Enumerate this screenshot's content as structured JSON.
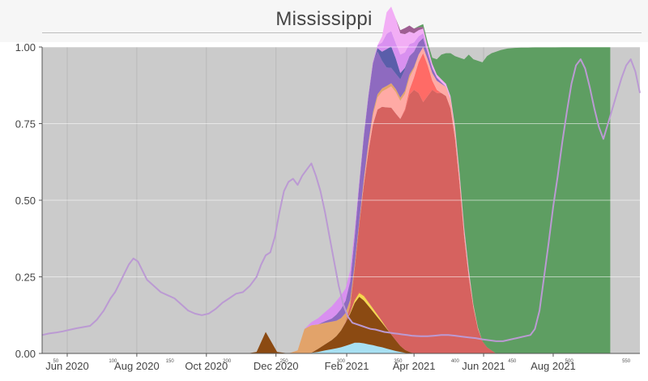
{
  "chart_data": {
    "type": "area",
    "title": "Mississippi",
    "xlabel": "",
    "ylabel": "",
    "ylim": [
      0,
      1
    ],
    "x_range": [
      38,
      562
    ],
    "secondary_x_ticks": [
      "50",
      "100",
      "150",
      "200",
      "250",
      "300",
      "350",
      "400",
      "450",
      "500",
      "550"
    ],
    "x_ticks": [
      {
        "label": "Jun 2020",
        "day": 60
      },
      {
        "label": "Aug 2020",
        "day": 121
      },
      {
        "label": "Oct 2020",
        "day": 182
      },
      {
        "label": "Dec 2020",
        "day": 243
      },
      {
        "label": "Feb 2021",
        "day": 305
      },
      {
        "label": "Apr 2021",
        "day": 364
      },
      {
        "label": "Jun 2021",
        "day": 425
      },
      {
        "label": "Aug 2021",
        "day": 486
      }
    ],
    "y_ticks": [
      "0.00",
      "0.25",
      "0.50",
      "0.75",
      "1.00"
    ],
    "background": "#cbcbcb",
    "stack_days": [
      218,
      226,
      234,
      244,
      254,
      262,
      268,
      274,
      280,
      286,
      292,
      296,
      300,
      304,
      308,
      312,
      316,
      320,
      324,
      328,
      332,
      336,
      340,
      344,
      348,
      352,
      356,
      360,
      364,
      368,
      372,
      376,
      380,
      384,
      388,
      392,
      396,
      400,
      404,
      408,
      412,
      416,
      420,
      424,
      428,
      432,
      436,
      440,
      446,
      452,
      458,
      464,
      470,
      476,
      482,
      488,
      494,
      500,
      506,
      512,
      518,
      524,
      530,
      536
    ],
    "series": [
      {
        "color": "#a8e0f2",
        "values": [
          0,
          0,
          0,
          0,
          0,
          0,
          0,
          0.002,
          0.005,
          0.01,
          0.014,
          0.017,
          0.02,
          0.025,
          0.03,
          0.035,
          0.035,
          0.033,
          0.03,
          0.027,
          0.023,
          0.02,
          0.016,
          0.012,
          0.008,
          0.005,
          0.002,
          0,
          0,
          0,
          0,
          0,
          0,
          0,
          0,
          0,
          0,
          0,
          0,
          0,
          0,
          0,
          0,
          0,
          0,
          0,
          0,
          0,
          0,
          0,
          0,
          0,
          0,
          0,
          0,
          0,
          0,
          0,
          0,
          0,
          0,
          0,
          0,
          0
        ]
      },
      {
        "color": "#8b4a12",
        "values": [
          0,
          0.005,
          0.07,
          0.005,
          0,
          0,
          0,
          0,
          0.01,
          0.02,
          0.03,
          0.04,
          0.055,
          0.075,
          0.1,
          0.13,
          0.15,
          0.14,
          0.125,
          0.11,
          0.095,
          0.08,
          0.065,
          0.05,
          0.035,
          0.02,
          0.01,
          0.005,
          0,
          0,
          0,
          0,
          0,
          0,
          0,
          0,
          0,
          0,
          0,
          0,
          0,
          0,
          0,
          0,
          0,
          0,
          0,
          0,
          0,
          0,
          0,
          0,
          0,
          0,
          0,
          0,
          0,
          0,
          0,
          0,
          0,
          0,
          0,
          0
        ]
      },
      {
        "color": "#f5d84e",
        "values": [
          0,
          0,
          0,
          0,
          0,
          0,
          0,
          0,
          0,
          0,
          0,
          0,
          0,
          0,
          0.003,
          0.008,
          0.012,
          0.014,
          0.012,
          0.01,
          0.008,
          0.005,
          0.002,
          0,
          0,
          0,
          0,
          0,
          0,
          0,
          0,
          0,
          0,
          0,
          0,
          0,
          0,
          0,
          0,
          0,
          0,
          0,
          0,
          0,
          0,
          0,
          0,
          0,
          0,
          0,
          0,
          0,
          0,
          0,
          0,
          0,
          0,
          0,
          0,
          0,
          0,
          0,
          0,
          0
        ]
      },
      {
        "color": "#e9653e",
        "values": [
          0,
          0,
          0,
          0,
          0,
          0,
          0,
          0,
          0,
          0,
          0,
          0,
          0,
          0,
          0.002,
          0.004,
          0.004,
          0.003,
          0.002,
          0,
          0,
          0,
          0,
          0,
          0,
          0,
          0,
          0,
          0,
          0,
          0,
          0,
          0,
          0,
          0,
          0,
          0,
          0,
          0,
          0,
          0,
          0,
          0,
          0,
          0,
          0,
          0,
          0,
          0,
          0,
          0,
          0,
          0,
          0,
          0,
          0,
          0,
          0,
          0,
          0,
          0,
          0,
          0,
          0
        ]
      },
      {
        "color": "#d6625f",
        "values": [
          0,
          0,
          0,
          0,
          0,
          0,
          0,
          0,
          0,
          0,
          0,
          0,
          0,
          0.002,
          0.02,
          0.1,
          0.22,
          0.36,
          0.49,
          0.6,
          0.67,
          0.7,
          0.72,
          0.74,
          0.74,
          0.74,
          0.78,
          0.84,
          0.86,
          0.85,
          0.82,
          0.84,
          0.86,
          0.85,
          0.85,
          0.84,
          0.8,
          0.7,
          0.55,
          0.38,
          0.25,
          0.15,
          0.08,
          0.04,
          0.02,
          0.01,
          0,
          0,
          0,
          0,
          0,
          0,
          0,
          0,
          0,
          0,
          0,
          0,
          0,
          0,
          0,
          0,
          0,
          0
        ]
      },
      {
        "color": "#ff6b66",
        "values": [
          0,
          0,
          0,
          0,
          0,
          0,
          0,
          0,
          0,
          0,
          0,
          0,
          0,
          0,
          0,
          0,
          0,
          0,
          0,
          0,
          0,
          0,
          0,
          0,
          0,
          0,
          0.005,
          0.015,
          0.04,
          0.1,
          0.16,
          0.1,
          0.03,
          0.01,
          0,
          0,
          0,
          0,
          0,
          0,
          0,
          0,
          0,
          0,
          0,
          0,
          0,
          0,
          0,
          0,
          0,
          0,
          0,
          0,
          0,
          0,
          0,
          0,
          0,
          0,
          0,
          0,
          0,
          0
        ]
      },
      {
        "color": "#ffaaa5",
        "values": [
          0,
          0,
          0,
          0,
          0,
          0,
          0,
          0,
          0,
          0,
          0,
          0,
          0,
          0,
          0,
          0,
          0,
          0.01,
          0.02,
          0.03,
          0.04,
          0.05,
          0.06,
          0.07,
          0.07,
          0.06,
          0.05,
          0.04,
          0.03,
          0.025,
          0.02,
          0.02,
          0.025,
          0.03,
          0.03,
          0.03,
          0.03,
          0.03,
          0.025,
          0.02,
          0.015,
          0.01,
          0.005,
          0,
          0,
          0,
          0,
          0,
          0,
          0,
          0,
          0,
          0,
          0,
          0,
          0,
          0,
          0,
          0,
          0,
          0,
          0,
          0,
          0
        ]
      },
      {
        "color": "#e2a36a",
        "values": [
          0,
          0,
          0,
          0,
          0,
          0.01,
          0.08,
          0.09,
          0.08,
          0.07,
          0.06,
          0.05,
          0.04,
          0.03,
          0.02,
          0.015,
          0.01,
          0.01,
          0.01,
          0.01,
          0.01,
          0.01,
          0.01,
          0.01,
          0.01,
          0.01,
          0.01,
          0.01,
          0.005,
          0,
          0,
          0,
          0,
          0,
          0,
          0,
          0,
          0,
          0,
          0,
          0,
          0,
          0,
          0,
          0,
          0,
          0,
          0,
          0,
          0,
          0,
          0,
          0,
          0,
          0,
          0,
          0,
          0,
          0,
          0,
          0,
          0,
          0,
          0
        ]
      },
      {
        "color": "#8e6ac0",
        "values": [
          0,
          0,
          0,
          0,
          0,
          0,
          0,
          0,
          0,
          0.005,
          0.01,
          0.02,
          0.03,
          0.04,
          0.06,
          0.09,
          0.12,
          0.14,
          0.15,
          0.16,
          0.14,
          0.09,
          0.06,
          0.05,
          0.05,
          0.06,
          0.07,
          0.06,
          0.05,
          0.04,
          0.03,
          0.02,
          0.015,
          0.01,
          0.005,
          0,
          0,
          0,
          0,
          0,
          0,
          0,
          0,
          0,
          0,
          0,
          0,
          0,
          0,
          0,
          0,
          0,
          0,
          0,
          0,
          0,
          0,
          0,
          0,
          0,
          0,
          0,
          0,
          0
        ]
      },
      {
        "color": "#5a5eaa",
        "values": [
          0,
          0,
          0,
          0,
          0,
          0,
          0,
          0,
          0,
          0,
          0,
          0,
          0,
          0,
          0,
          0,
          0,
          0,
          0,
          0,
          0.01,
          0.03,
          0.06,
          0.07,
          0.05,
          0.02,
          0.005,
          0,
          0,
          0,
          0,
          0,
          0,
          0,
          0,
          0,
          0,
          0,
          0,
          0,
          0,
          0,
          0,
          0,
          0,
          0,
          0,
          0,
          0,
          0,
          0,
          0,
          0,
          0,
          0,
          0,
          0,
          0,
          0,
          0,
          0,
          0,
          0,
          0
        ]
      },
      {
        "color": "#d990f0",
        "values": [
          0,
          0,
          0,
          0,
          0,
          0,
          0,
          0.01,
          0.02,
          0.03,
          0.04,
          0.045,
          0.045,
          0.04,
          0.035,
          0.02,
          0.01,
          0.005,
          0.005,
          0.005,
          0.01,
          0.03,
          0.05,
          0.05,
          0.05,
          0.06,
          0.05,
          0.04,
          0.03,
          0.02,
          0.015,
          0.01,
          0.005,
          0,
          0,
          0,
          0,
          0,
          0,
          0,
          0,
          0,
          0,
          0,
          0,
          0,
          0,
          0,
          0,
          0,
          0,
          0,
          0,
          0,
          0,
          0,
          0,
          0,
          0,
          0,
          0,
          0,
          0,
          0
        ]
      },
      {
        "color": "#f2aef5",
        "values": [
          0,
          0,
          0,
          0,
          0,
          0,
          0,
          0,
          0,
          0,
          0,
          0,
          0,
          0,
          0,
          0,
          0,
          0,
          0,
          0,
          0,
          0.02,
          0.07,
          0.08,
          0.08,
          0.07,
          0.06,
          0.04,
          0.03,
          0.02,
          0.015,
          0.01,
          0.01,
          0.01,
          0.01,
          0.01,
          0.01,
          0.01,
          0.01,
          0.01,
          0.01,
          0,
          0,
          0,
          0,
          0,
          0,
          0,
          0,
          0,
          0,
          0,
          0,
          0,
          0,
          0,
          0,
          0,
          0,
          0,
          0,
          0,
          0,
          0
        ]
      },
      {
        "color": "#9e5e92",
        "values": [
          0,
          0,
          0,
          0,
          0,
          0,
          0,
          0,
          0,
          0,
          0,
          0,
          0,
          0,
          0,
          0,
          0,
          0,
          0,
          0,
          0,
          0,
          0,
          0,
          0,
          0.01,
          0.02,
          0.02,
          0.015,
          0.01,
          0.005,
          0,
          0,
          0,
          0,
          0,
          0,
          0,
          0,
          0,
          0,
          0,
          0,
          0,
          0,
          0,
          0,
          0,
          0,
          0,
          0,
          0,
          0,
          0,
          0,
          0,
          0,
          0,
          0,
          0,
          0,
          0,
          0,
          0
        ]
      },
      {
        "color": "#5e9e62",
        "values": [
          0,
          0,
          0,
          0,
          0,
          0,
          0,
          0,
          0,
          0,
          0,
          0,
          0,
          0,
          0,
          0,
          0,
          0,
          0,
          0,
          0,
          0,
          0,
          0,
          0,
          0,
          0,
          0,
          0,
          0.003,
          0.01,
          0.015,
          0.02,
          0.05,
          0.08,
          0.1,
          0.14,
          0.23,
          0.38,
          0.55,
          0.7,
          0.8,
          0.87,
          0.91,
          0.95,
          0.97,
          0.985,
          0.99,
          0.995,
          0.997,
          0.998,
          0.998,
          0.999,
          0.999,
          0.999,
          0.999,
          1,
          1,
          1,
          1,
          1,
          1,
          1,
          1
        ]
      }
    ],
    "line_series": {
      "color": "#bb9ad3",
      "x": [
        38,
        44,
        50,
        56,
        62,
        68,
        74,
        80,
        86,
        92,
        98,
        102,
        106,
        110,
        114,
        118,
        122,
        126,
        130,
        136,
        142,
        148,
        154,
        160,
        166,
        172,
        178,
        184,
        190,
        196,
        202,
        208,
        214,
        220,
        226,
        230,
        234,
        238,
        242,
        246,
        250,
        254,
        258,
        262,
        266,
        270,
        274,
        278,
        282,
        286,
        290,
        294,
        298,
        302,
        306,
        310,
        314,
        318,
        322,
        326,
        330,
        334,
        338,
        342,
        346,
        350,
        354,
        358,
        362,
        366,
        370,
        376,
        382,
        388,
        394,
        400,
        406,
        412,
        418,
        424,
        430,
        436,
        442,
        448,
        454,
        460,
        466,
        470,
        474,
        478,
        482,
        486,
        490,
        494,
        498,
        502,
        506,
        510,
        514,
        518,
        522,
        526,
        530,
        534,
        538,
        542,
        546,
        550,
        554,
        558,
        562
      ],
      "y": [
        0.06,
        0.065,
        0.068,
        0.072,
        0.077,
        0.082,
        0.086,
        0.09,
        0.11,
        0.14,
        0.18,
        0.2,
        0.23,
        0.26,
        0.29,
        0.31,
        0.3,
        0.27,
        0.24,
        0.22,
        0.2,
        0.19,
        0.18,
        0.16,
        0.14,
        0.13,
        0.125,
        0.13,
        0.145,
        0.165,
        0.18,
        0.195,
        0.2,
        0.22,
        0.25,
        0.29,
        0.32,
        0.33,
        0.38,
        0.46,
        0.53,
        0.56,
        0.57,
        0.55,
        0.58,
        0.6,
        0.62,
        0.58,
        0.53,
        0.46,
        0.38,
        0.3,
        0.22,
        0.16,
        0.12,
        0.1,
        0.095,
        0.09,
        0.085,
        0.08,
        0.078,
        0.074,
        0.07,
        0.068,
        0.066,
        0.064,
        0.062,
        0.06,
        0.058,
        0.057,
        0.056,
        0.056,
        0.058,
        0.06,
        0.06,
        0.058,
        0.055,
        0.052,
        0.05,
        0.046,
        0.043,
        0.04,
        0.04,
        0.045,
        0.05,
        0.055,
        0.06,
        0.08,
        0.14,
        0.25,
        0.36,
        0.48,
        0.58,
        0.69,
        0.79,
        0.88,
        0.94,
        0.96,
        0.93,
        0.87,
        0.8,
        0.74,
        0.7,
        0.75,
        0.8,
        0.85,
        0.9,
        0.94,
        0.96,
        0.92,
        0.85
      ]
    }
  }
}
